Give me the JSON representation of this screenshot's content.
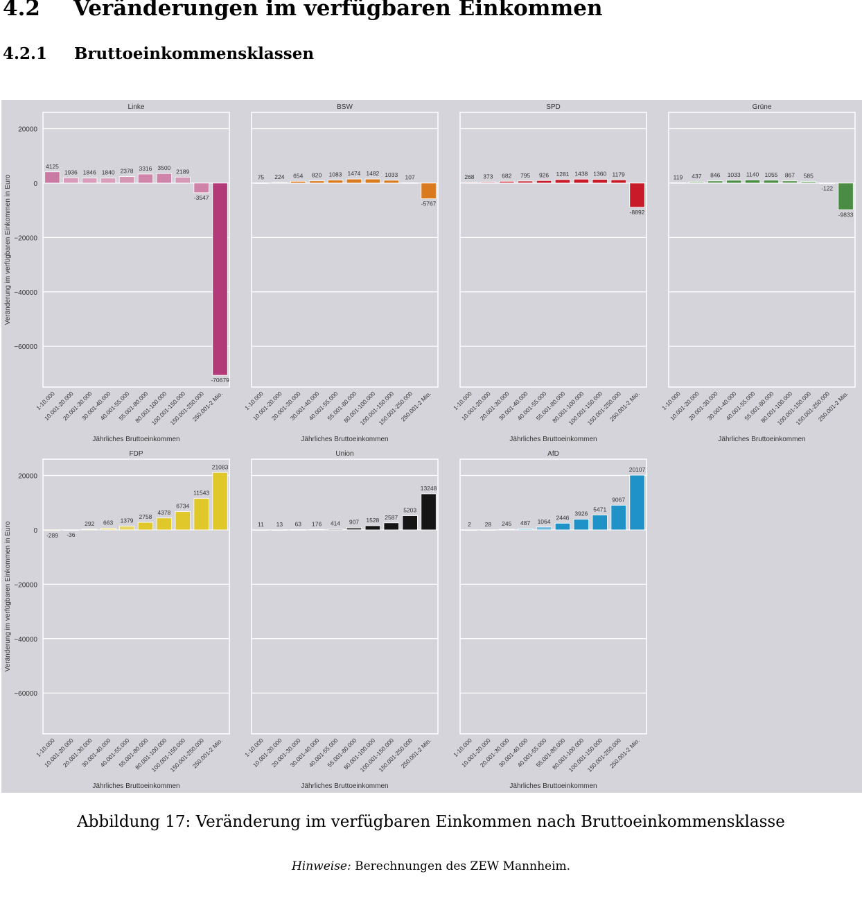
{
  "header": {
    "section_number": "4.2",
    "section_title": "Veränderungen im verfügbaren Einkommen",
    "subsection_number": "4.2.1",
    "subsection_title": "Bruttoeinkommensklassen"
  },
  "caption": "Abbildung 17: Veränderung im verfügbaren Einkommen nach Bruttoeinkommensklasse",
  "note": {
    "label": "Hinweise:",
    "text": " Berechnungen des ZEW Mannheim."
  },
  "chart_data": {
    "type": "bar",
    "layout": "facet-grid 2 rows x 4 columns, shared axes",
    "xlabel": "Jährliches Bruttoeinkommen",
    "ylabel": "Veränderung im verfügbaren Einkommen in Euro",
    "ylim": [
      -75000,
      26000
    ],
    "yticks": [
      20000,
      0,
      -20000,
      -40000,
      -60000
    ],
    "ytick_labels": [
      "20000",
      "0",
      "−20000",
      "−40000",
      "−60000"
    ],
    "grid": true,
    "categories": [
      "1-10.000",
      "10.001-20.000",
      "20.001-30.000",
      "30.001-40.000",
      "40.001-55.000",
      "55.001-80.000",
      "80.001-100.000",
      "100.001-150.000",
      "150.001-250.000",
      "250.001-2 Mio."
    ],
    "series": [
      {
        "name": "Linke",
        "color": "#b23a78",
        "light": "#e8c7d6",
        "values": [
          4125,
          1936,
          1846,
          1840,
          2378,
          3316,
          3500,
          2189,
          -3547,
          -70679
        ]
      },
      {
        "name": "BSW",
        "color": "#d97a1f",
        "light": "#f3dcc4",
        "values": [
          75,
          224,
          654,
          820,
          1083,
          1474,
          1482,
          1033,
          107,
          -5767
        ]
      },
      {
        "name": "SPD",
        "color": "#c81b2a",
        "light": "#f0c8cc",
        "values": [
          268,
          373,
          682,
          795,
          926,
          1281,
          1438,
          1360,
          1179,
          -8892
        ]
      },
      {
        "name": "Grüne",
        "color": "#4a8c43",
        "light": "#cfe2cb",
        "values": [
          119,
          437,
          846,
          1033,
          1140,
          1055,
          867,
          585,
          -122,
          -9833
        ]
      },
      {
        "name": "FDP",
        "color": "#e0c82a",
        "light": "#f3ecbc",
        "values": [
          -289,
          -36,
          292,
          663,
          1379,
          2758,
          4378,
          6734,
          11543,
          21083
        ]
      },
      {
        "name": "Union",
        "color": "#151515",
        "light": "#e4e4e4",
        "values": [
          11,
          13,
          63,
          176,
          414,
          907,
          1528,
          2587,
          5203,
          13248
        ]
      },
      {
        "name": "AfD",
        "color": "#1f93c8",
        "light": "#c4e2ef",
        "values": [
          2,
          28,
          245,
          487,
          1064,
          2446,
          3926,
          5471,
          9067,
          20107
        ]
      }
    ]
  }
}
